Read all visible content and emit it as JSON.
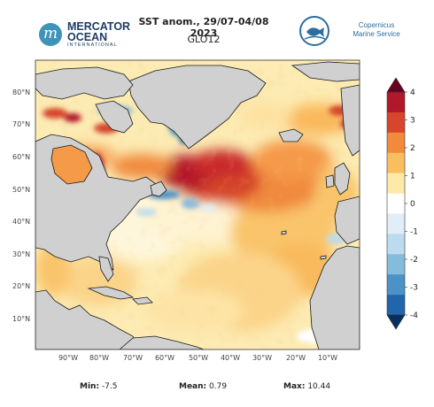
{
  "header": {
    "title": "SST anom., 29/07-04/08 2023",
    "subtitle": "GLO12",
    "logo_left": {
      "mark": "m",
      "name_line1": "MERCATOR",
      "name_line2": "OCEAN",
      "sub": "INTERNATIONAL"
    },
    "logo_right": {
      "name_line1": "Copernicus",
      "name_line2": "Marine Service"
    }
  },
  "map": {
    "lat_labels": [
      "80°N",
      "70°N",
      "60°N",
      "50°N",
      "40°N",
      "30°N",
      "20°N",
      "10°N"
    ],
    "lon_labels": [
      "90°W",
      "80°W",
      "70°W",
      "60°W",
      "50°W",
      "40°W",
      "30°W",
      "20°W",
      "10°W"
    ],
    "colors": {
      "land": "#d0d0d0",
      "coast": "#1a1a1a"
    }
  },
  "colorbar": {
    "ticks": [
      "4",
      "3",
      "2",
      "1",
      "0",
      "-1",
      "-2",
      "-3",
      "-4"
    ],
    "colors": [
      "#67001f",
      "#b2182b",
      "#d6452c",
      "#f08a3c",
      "#f9be5f",
      "#fde9a8",
      "#ffffff",
      "#e1eef7",
      "#bddbee",
      "#85bcdc",
      "#4b93c6",
      "#2166ac",
      "#053061"
    ]
  },
  "stats": {
    "min_label": "Min:",
    "min_value": "-7.5",
    "mean_label": "Mean:",
    "mean_value": "0.79",
    "max_label": "Max:",
    "max_value": "10.44"
  }
}
